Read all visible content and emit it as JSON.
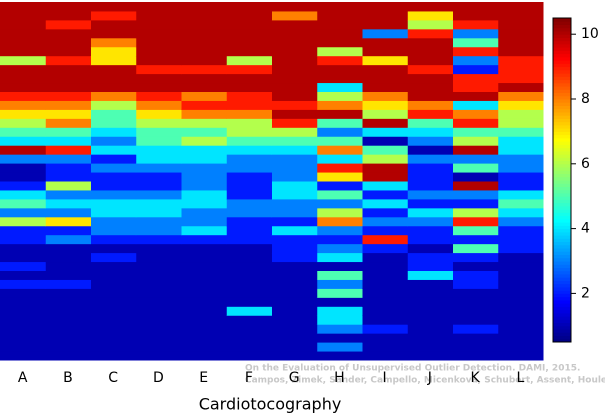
{
  "chart_data": {
    "type": "heatmap",
    "x_label": "Cardiotocography",
    "categories": [
      "A",
      "B",
      "C",
      "D",
      "E",
      "F",
      "G",
      "H",
      "I",
      "J",
      "K",
      "L"
    ],
    "annotations": [
      "On the Evaluation of Unsupervised Outlier Detection. DAMI, 2015.",
      "Campos, Zimek, Sander, Campello, Micenková, Schubert, Assent, Houle"
    ],
    "colormap": "jet",
    "clim": [
      0.5,
      10.5
    ],
    "cticks": [
      2,
      4,
      6,
      8,
      10
    ],
    "values": [
      [
        10,
        10,
        10,
        10,
        10,
        10,
        10,
        10,
        10,
        10,
        10,
        10
      ],
      [
        10,
        10,
        9,
        10,
        10,
        10,
        8,
        10,
        10,
        7,
        10,
        10
      ],
      [
        10,
        9,
        10,
        10,
        10,
        10,
        10,
        10,
        10,
        6,
        9,
        10
      ],
      [
        10,
        10,
        10,
        10,
        10,
        10,
        10,
        10,
        3,
        9,
        3,
        10
      ],
      [
        10,
        10,
        8,
        10,
        10,
        10,
        10,
        10,
        10,
        10,
        5,
        10
      ],
      [
        10,
        10,
        7,
        10,
        10,
        10,
        10,
        6,
        10,
        10,
        9,
        10
      ],
      [
        6,
        9,
        7,
        10,
        10,
        6,
        10,
        9,
        7,
        10,
        3,
        9
      ],
      [
        10,
        10,
        10,
        9,
        9,
        9,
        10,
        10,
        10,
        9,
        2,
        9
      ],
      [
        10,
        10,
        10,
        10,
        10,
        10,
        10,
        10,
        10,
        10,
        9,
        9
      ],
      [
        10,
        10,
        10,
        10,
        10,
        10,
        10,
        4,
        10,
        10,
        9,
        10
      ],
      [
        9,
        9,
        8,
        9,
        8,
        9,
        10,
        6,
        8,
        10,
        10,
        8
      ],
      [
        8,
        8,
        6,
        8,
        9,
        9,
        9,
        8,
        7,
        8,
        4,
        7
      ],
      [
        7,
        7,
        5,
        7,
        8,
        8,
        10,
        10,
        6,
        9,
        8,
        6
      ],
      [
        6,
        8,
        5,
        6,
        6,
        6,
        9,
        5,
        10,
        5,
        9,
        6
      ],
      [
        5,
        5,
        4,
        5,
        5,
        6,
        6,
        3,
        4,
        4,
        5,
        5
      ],
      [
        4,
        4,
        3,
        5,
        6,
        5,
        5,
        5,
        1,
        3,
        6,
        4
      ],
      [
        10,
        9,
        4,
        4,
        4,
        4,
        4,
        8,
        5,
        1,
        10,
        4
      ],
      [
        3,
        3,
        2,
        4,
        4,
        3,
        3,
        4,
        6,
        3,
        3,
        3
      ],
      [
        1,
        2,
        3,
        3,
        3,
        3,
        3,
        9,
        10,
        2,
        5,
        3
      ],
      [
        1,
        2,
        2,
        2,
        3,
        2,
        3,
        7,
        10,
        2,
        1,
        2
      ],
      [
        2,
        6,
        2,
        2,
        3,
        2,
        4,
        2,
        4,
        2,
        10,
        2
      ],
      [
        4,
        3,
        3,
        3,
        4,
        2,
        4,
        5,
        2,
        3,
        3,
        4
      ],
      [
        5,
        4,
        4,
        4,
        4,
        3,
        3,
        3,
        4,
        2,
        2,
        5
      ],
      [
        3,
        3,
        4,
        4,
        3,
        3,
        3,
        6,
        2,
        4,
        6,
        4
      ],
      [
        6,
        7,
        3,
        3,
        3,
        2,
        2,
        8,
        3,
        3,
        9,
        3
      ],
      [
        2,
        2,
        3,
        3,
        4,
        2,
        4,
        3,
        2,
        2,
        5,
        2
      ],
      [
        2,
        3,
        2,
        2,
        2,
        2,
        2,
        2,
        9,
        2,
        2,
        2
      ],
      [
        1,
        1,
        1,
        1,
        1,
        1,
        2,
        3,
        2,
        1,
        5,
        2
      ],
      [
        1,
        1,
        2,
        1,
        1,
        1,
        2,
        4,
        1,
        2,
        2,
        1
      ],
      [
        2,
        1,
        1,
        1,
        1,
        1,
        1,
        1,
        1,
        2,
        1,
        1
      ],
      [
        1,
        1,
        1,
        1,
        1,
        1,
        1,
        5,
        1,
        4,
        2,
        1
      ],
      [
        2,
        2,
        1,
        1,
        1,
        1,
        1,
        3,
        1,
        1,
        2,
        1
      ],
      [
        1,
        1,
        1,
        1,
        1,
        1,
        1,
        5,
        1,
        1,
        1,
        1
      ],
      [
        1,
        1,
        1,
        1,
        1,
        1,
        1,
        1,
        1,
        1,
        1,
        1
      ],
      [
        1,
        1,
        1,
        1,
        1,
        4,
        1,
        4,
        1,
        1,
        1,
        1
      ],
      [
        1,
        1,
        1,
        1,
        1,
        1,
        1,
        4,
        1,
        1,
        1,
        1
      ],
      [
        1,
        1,
        1,
        1,
        1,
        1,
        1,
        3,
        2,
        1,
        2,
        1
      ],
      [
        1,
        1,
        1,
        1,
        1,
        1,
        1,
        1,
        1,
        1,
        1,
        1
      ],
      [
        1,
        1,
        1,
        1,
        1,
        1,
        1,
        3,
        1,
        1,
        1,
        1
      ],
      [
        1,
        1,
        1,
        1,
        1,
        1,
        1,
        1,
        1,
        1,
        1,
        1
      ]
    ]
  }
}
